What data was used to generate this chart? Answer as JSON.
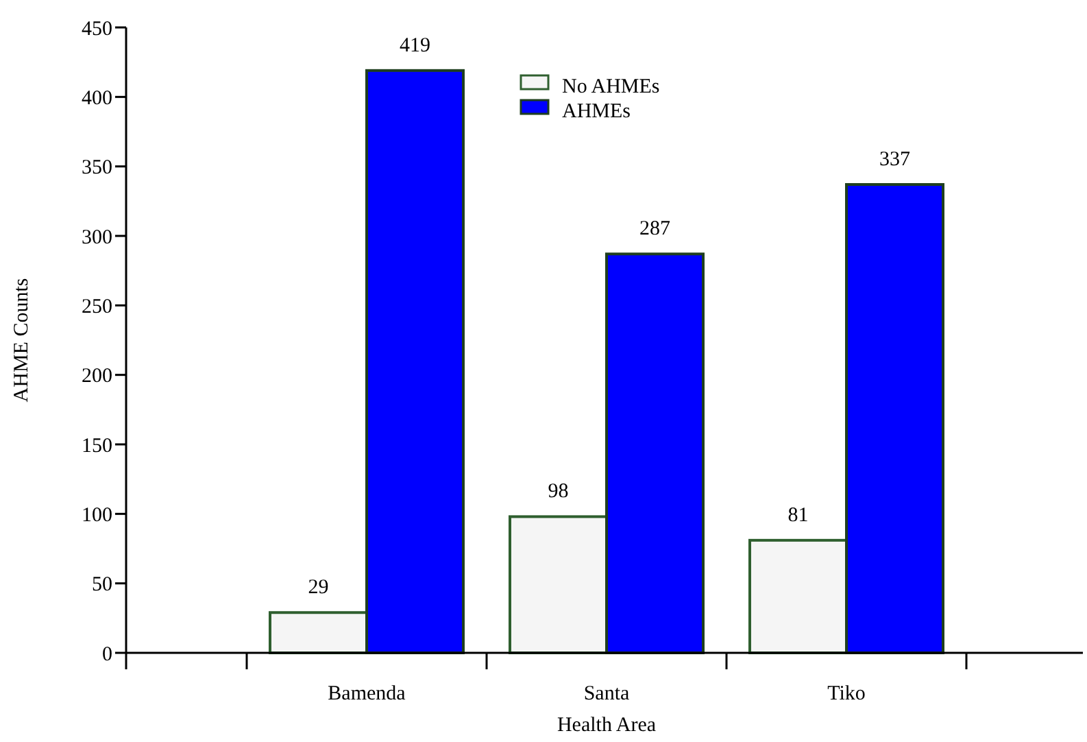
{
  "chart_data": {
    "type": "bar",
    "xlabel": "Health Area",
    "ylabel": "AHME Counts",
    "categories": [
      "Bamenda",
      "Santa",
      "Tiko"
    ],
    "series": [
      {
        "name": "No AHMEs",
        "color": "#f5f5f5",
        "values": [
          29,
          98,
          81
        ]
      },
      {
        "name": "AHMEs",
        "color": "#0000ff",
        "values": [
          419,
          287,
          337
        ]
      }
    ],
    "ylim": [
      0,
      450
    ],
    "yticks": [
      0,
      50,
      100,
      150,
      200,
      250,
      300,
      350,
      400,
      450
    ],
    "data_labels": true,
    "legend": "top",
    "grid": false
  }
}
